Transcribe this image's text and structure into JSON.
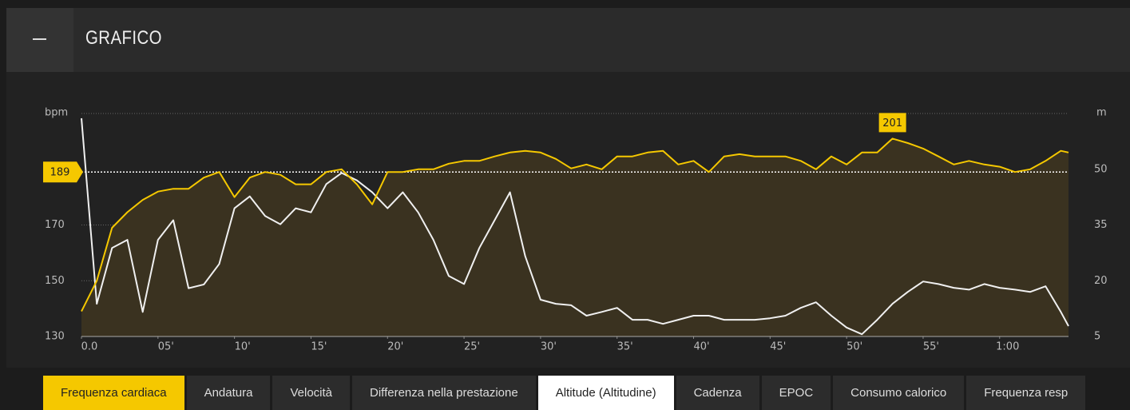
{
  "header": {
    "title": "GRAFICO"
  },
  "chart_data": {
    "type": "line",
    "y_label": "bpm",
    "y2_label": "m",
    "x": [
      0,
      1,
      2,
      3,
      4,
      5,
      6,
      7,
      8,
      9,
      10,
      11,
      12,
      13,
      14,
      15,
      16,
      17,
      18,
      19,
      20,
      21,
      22,
      23,
      24,
      25,
      26,
      27,
      28,
      29,
      30,
      31,
      32,
      33,
      34,
      35,
      36,
      37,
      38,
      39,
      40,
      41,
      42,
      43,
      44,
      45,
      46,
      47,
      48,
      49,
      50,
      51,
      52,
      53,
      54,
      55,
      56,
      57,
      58,
      59,
      60,
      61,
      62,
      63,
      64,
      64.5
    ],
    "xlim": [
      0,
      64.5
    ],
    "xticks": [
      {
        "value": 0,
        "label": "0.0"
      },
      {
        "value": 5,
        "label": "05'"
      },
      {
        "value": 10,
        "label": "10'"
      },
      {
        "value": 15,
        "label": "15'"
      },
      {
        "value": 20,
        "label": "20'"
      },
      {
        "value": 25,
        "label": "25'"
      },
      {
        "value": 30,
        "label": "30'"
      },
      {
        "value": 35,
        "label": "35'"
      },
      {
        "value": 40,
        "label": "40'"
      },
      {
        "value": 45,
        "label": "45'"
      },
      {
        "value": 50,
        "label": "50'"
      },
      {
        "value": 55,
        "label": "55'"
      },
      {
        "value": 60,
        "label": "1:00"
      }
    ],
    "ylim": [
      130,
      210
    ],
    "yticks": [
      130,
      150,
      170
    ],
    "y2lim": [
      5,
      65
    ],
    "y2ticks": [
      5,
      20,
      35,
      50
    ],
    "grid": true,
    "average": 189,
    "max": {
      "x": 53,
      "value": 201
    },
    "series": [
      {
        "name": "Frequenza cardiaca",
        "color": "#f5c800",
        "fill": "#3a3220",
        "values": [
          139,
          150,
          169,
          174.6,
          179,
          182,
          183,
          183,
          187,
          189,
          180,
          187,
          189,
          188,
          184.6,
          184.6,
          189,
          190,
          184.6,
          177.4,
          189,
          189,
          190,
          190,
          192,
          193,
          193,
          194.6,
          196,
          196.6,
          196,
          193.7,
          190.3,
          191.7,
          190,
          194.6,
          194.6,
          196,
          196.6,
          191.7,
          193,
          189,
          194.6,
          195.4,
          194.6,
          194.6,
          194.6,
          193,
          190,
          194.6,
          191.7,
          196,
          196,
          201,
          199.4,
          197.4,
          194.6,
          191.7,
          193,
          191.7,
          190.9,
          189,
          190,
          193,
          196.6,
          196
        ]
      },
      {
        "name": "Altitude (Altitudine)",
        "color": "#f0f0f0",
        "axis": "y2",
        "values": [
          63.7,
          13.8,
          28.8,
          31,
          11.6,
          31,
          36.3,
          18,
          19,
          24.5,
          39.5,
          42.7,
          37.4,
          35.2,
          39.5,
          38.4,
          46,
          49,
          47,
          43.8,
          39.5,
          43.8,
          38.4,
          31,
          21.3,
          19.1,
          28.8,
          36.3,
          43.8,
          26.6,
          14.9,
          13.8,
          13.4,
          10.6,
          11.6,
          12.7,
          9.5,
          9.5,
          8.4,
          9.5,
          10.6,
          10.6,
          9.5,
          9.5,
          9.5,
          9.9,
          10.6,
          12.7,
          14.2,
          10.6,
          7.4,
          5.6,
          9.5,
          13.8,
          17,
          19.8,
          19.1,
          18.1,
          17.6,
          19.1,
          18.1,
          17.6,
          17,
          18.5,
          11.6,
          7.8
        ]
      }
    ]
  },
  "tabs": {
    "items": [
      "Frequenza cardiaca",
      "Andatura",
      "Velocità",
      "Differenza nella prestazione",
      "Altitude (Altitudine)",
      "Cadenza",
      "EPOC",
      "Consumo calorico",
      "Frequenza resp"
    ],
    "active": 0,
    "selected": 4
  }
}
